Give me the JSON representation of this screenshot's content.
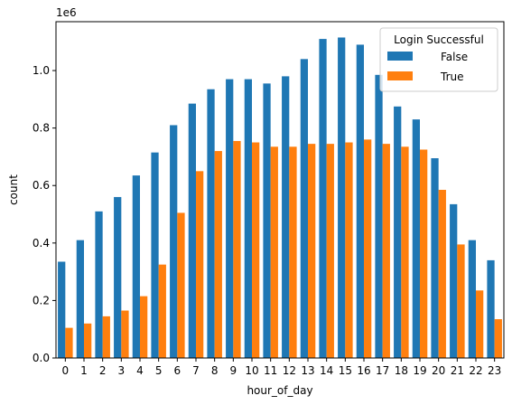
{
  "chart_data": {
    "type": "bar",
    "xlabel": "hour_of_day",
    "ylabel": "count",
    "y_offset_label": "1e6",
    "ylim": [
      0,
      1.17
    ],
    "yticks": [
      0.0,
      0.2,
      0.4,
      0.6,
      0.8,
      1.0
    ],
    "ytick_labels": [
      "0.0",
      "0.2",
      "0.4",
      "0.6",
      "0.8",
      "1.0"
    ],
    "categories": [
      "0",
      "1",
      "2",
      "3",
      "4",
      "5",
      "6",
      "7",
      "8",
      "9",
      "10",
      "11",
      "12",
      "13",
      "14",
      "15",
      "16",
      "17",
      "18",
      "19",
      "20",
      "21",
      "22",
      "23"
    ],
    "legend": {
      "title": "Login Successful",
      "position": "top-right"
    },
    "series": [
      {
        "name": "False",
        "color": "#1f77b4",
        "values": [
          0.335,
          0.41,
          0.51,
          0.56,
          0.635,
          0.715,
          0.81,
          0.885,
          0.935,
          0.97,
          0.97,
          0.955,
          0.98,
          1.04,
          1.11,
          1.115,
          1.09,
          0.985,
          0.875,
          0.83,
          0.695,
          0.535,
          0.41,
          0.34
        ]
      },
      {
        "name": "True",
        "color": "#ff7f0e",
        "values": [
          0.105,
          0.12,
          0.145,
          0.165,
          0.215,
          0.325,
          0.505,
          0.65,
          0.72,
          0.755,
          0.75,
          0.735,
          0.735,
          0.745,
          0.745,
          0.75,
          0.76,
          0.745,
          0.735,
          0.725,
          0.585,
          0.395,
          0.235,
          0.135
        ]
      }
    ]
  }
}
